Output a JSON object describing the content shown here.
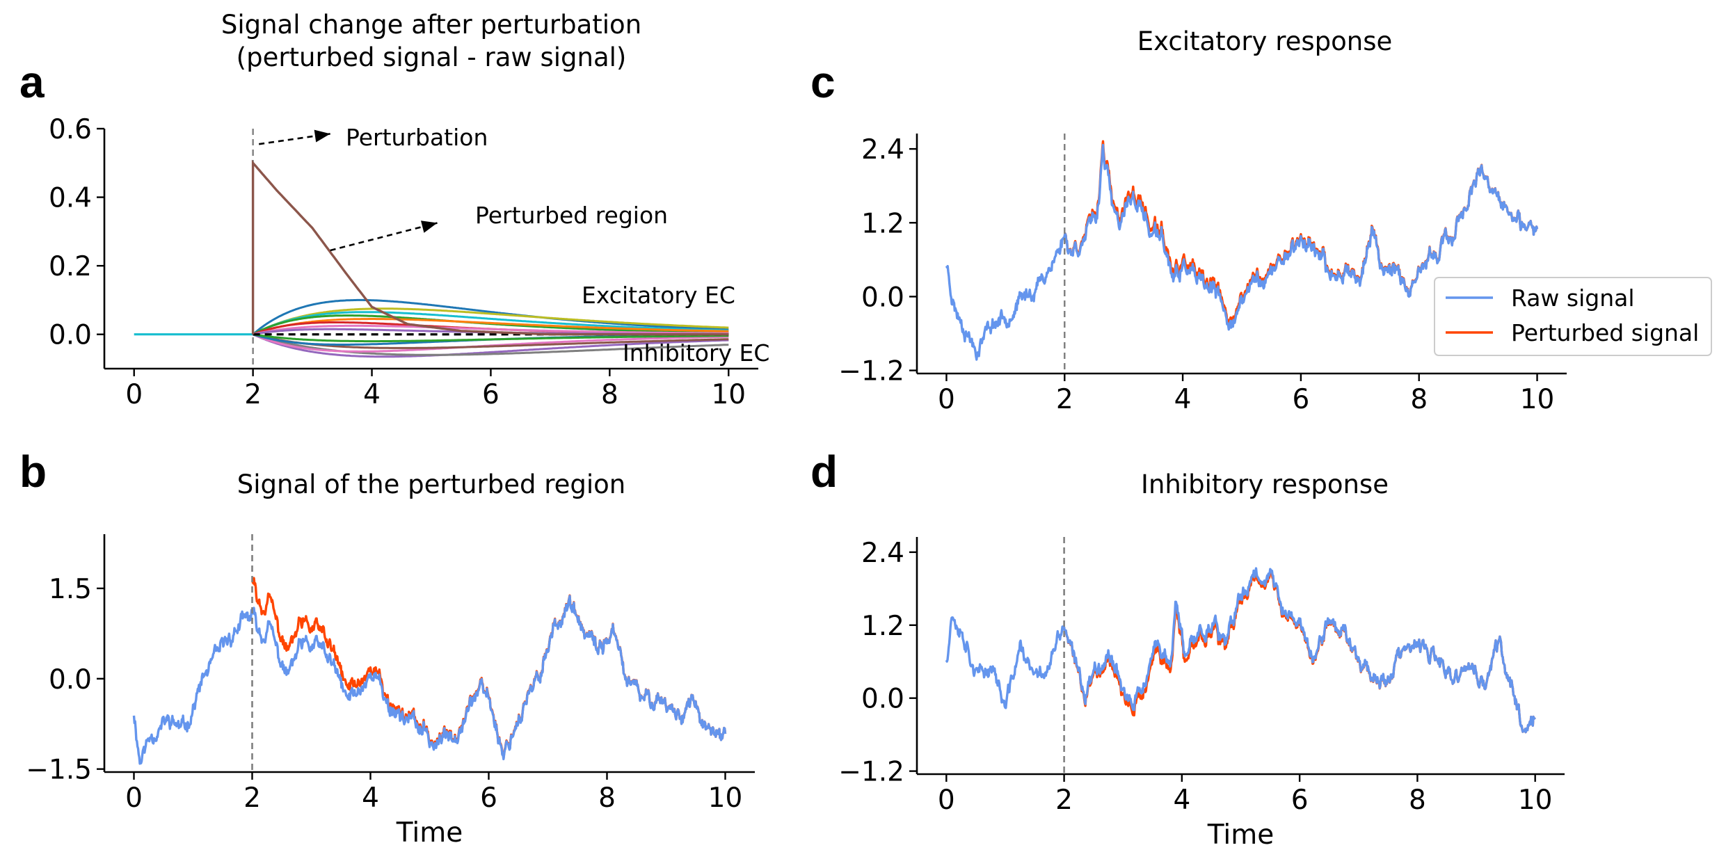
{
  "chart_data": [
    {
      "id": "a",
      "panel_letter": "a",
      "type": "line",
      "title_lines": [
        "Signal change after perturbation",
        "(perturbed signal - raw signal)"
      ],
      "xlabel": "",
      "xlim": [
        -0.5,
        10.5
      ],
      "ylim": [
        -0.1,
        0.6
      ],
      "xticks": [
        0,
        2,
        4,
        6,
        8,
        10
      ],
      "yticks": [
        0.0,
        0.2,
        0.4,
        0.6
      ],
      "ytick_labels": [
        "0.0",
        "0.2",
        "0.4",
        "0.6"
      ],
      "perturbation_time": 2,
      "perturbed_region": {
        "name": "Perturbed region",
        "color": "#8c564b",
        "peak": 0.5,
        "decay_points": [
          [
            2,
            0.5
          ],
          [
            2.4,
            0.42
          ],
          [
            3,
            0.31
          ],
          [
            3.6,
            0.17
          ],
          [
            4,
            0.08
          ],
          [
            4.6,
            0.03
          ],
          [
            5.5,
            0.01
          ],
          [
            7,
            0.0
          ],
          [
            10,
            0.0
          ]
        ]
      },
      "excitatory_curves": [
        {
          "color": "#1f77b4",
          "peak": 0.1,
          "peak_t": 3.8
        },
        {
          "color": "#bcbd22",
          "peak": 0.075,
          "peak_t": 4.2
        },
        {
          "color": "#17becf",
          "peak": 0.065,
          "peak_t": 3.9
        },
        {
          "color": "#2ca02c",
          "peak": 0.055,
          "peak_t": 3.6
        },
        {
          "color": "#ff7f0e",
          "peak": 0.045,
          "peak_t": 4.0
        },
        {
          "color": "#d62728",
          "peak": 0.035,
          "peak_t": 3.4
        },
        {
          "color": "#e377c2",
          "peak": 0.025,
          "peak_t": 3.7
        },
        {
          "color": "#9467bd",
          "peak": 0.015,
          "peak_t": 3.3
        }
      ],
      "inhibitory_curves": [
        {
          "color": "#9467bd",
          "peak": -0.065,
          "peak_t": 4.2
        },
        {
          "color": "#7f7f7f",
          "peak": -0.06,
          "peak_t": 5.0
        },
        {
          "color": "#e377c2",
          "peak": -0.05,
          "peak_t": 3.8
        },
        {
          "color": "#8c564b",
          "peak": -0.04,
          "peak_t": 4.5
        },
        {
          "color": "#1f77b4",
          "peak": -0.03,
          "peak_t": 3.5
        },
        {
          "color": "#2ca02c",
          "peak": -0.02,
          "peak_t": 4.0
        }
      ],
      "baseline_color": "#17becf",
      "annotations": {
        "perturbation": "Perturbation",
        "perturbed_region": "Perturbed region",
        "excitatory": "Excitatory EC",
        "inhibitory": "Inhibitory EC"
      }
    },
    {
      "id": "b",
      "panel_letter": "b",
      "type": "line",
      "title_lines": [
        "Signal of the perturbed region"
      ],
      "xlabel": "Time",
      "xlim": [
        -0.5,
        10.5
      ],
      "ylim": [
        -1.55,
        2.4
      ],
      "xticks": [
        0,
        2,
        4,
        6,
        8,
        10
      ],
      "yticks": [
        -1.5,
        0.0,
        1.5
      ],
      "ytick_labels": [
        "−1.5",
        "0.0",
        "1.5"
      ],
      "perturbation_time": 2,
      "raw_keypoints": [
        [
          0,
          -0.55
        ],
        [
          0.1,
          -1.35
        ],
        [
          0.3,
          -0.9
        ],
        [
          0.6,
          -0.7
        ],
        [
          0.85,
          -0.85
        ],
        [
          1.2,
          0.05
        ],
        [
          1.5,
          0.5
        ],
        [
          1.75,
          0.85
        ],
        [
          2.0,
          1.05
        ],
        [
          2.15,
          0.7
        ],
        [
          2.3,
          0.85
        ],
        [
          2.45,
          0.35
        ],
        [
          2.6,
          0.05
        ],
        [
          2.8,
          0.5
        ],
        [
          3.1,
          0.55
        ],
        [
          3.35,
          0.25
        ],
        [
          3.6,
          -0.35
        ],
        [
          3.8,
          -0.2
        ],
        [
          4.05,
          0.15
        ],
        [
          4.3,
          -0.45
        ],
        [
          4.7,
          -0.7
        ],
        [
          5.1,
          -1.1
        ],
        [
          5.45,
          -0.85
        ],
        [
          5.8,
          -0.2
        ],
        [
          6.0,
          -0.3
        ],
        [
          6.25,
          -1.25
        ],
        [
          6.5,
          -0.65
        ],
        [
          6.8,
          -0.1
        ],
        [
          7.1,
          0.85
        ],
        [
          7.35,
          1.25
        ],
        [
          7.6,
          0.75
        ],
        [
          7.85,
          0.45
        ],
        [
          8.1,
          0.8
        ],
        [
          8.3,
          0.05
        ],
        [
          8.6,
          -0.35
        ],
        [
          8.9,
          -0.3
        ],
        [
          9.2,
          -0.6
        ],
        [
          9.45,
          -0.35
        ],
        [
          9.7,
          -0.95
        ],
        [
          10.0,
          -0.95
        ]
      ],
      "perturbation_offset": {
        "peak": 0.5,
        "decay_points": [
          [
            2.0,
            0.5
          ],
          [
            2.5,
            0.42
          ],
          [
            3.0,
            0.31
          ],
          [
            3.5,
            0.2
          ],
          [
            4.0,
            0.1
          ],
          [
            4.5,
            0.05
          ],
          [
            5.0,
            0.03
          ],
          [
            6.0,
            0.015
          ],
          [
            7.0,
            0.01
          ],
          [
            10.0,
            0.0
          ]
        ]
      },
      "series": [
        {
          "name": "Raw signal",
          "color": "#6495ed"
        },
        {
          "name": "Perturbed signal",
          "color": "#ff4500"
        }
      ]
    },
    {
      "id": "c",
      "panel_letter": "c",
      "type": "line",
      "title_lines": [
        "Excitatory response"
      ],
      "xlabel": "",
      "xlim": [
        -0.5,
        10.5
      ],
      "ylim": [
        -1.25,
        2.65
      ],
      "xticks": [
        0,
        2,
        4,
        6,
        8,
        10
      ],
      "yticks": [
        -1.2,
        0.0,
        1.2,
        2.4
      ],
      "ytick_labels": [
        "−1.2",
        "0.0",
        "1.2",
        "2.4"
      ],
      "perturbation_time": 2,
      "raw_keypoints": [
        [
          0,
          0.55
        ],
        [
          0.15,
          -0.2
        ],
        [
          0.3,
          -0.45
        ],
        [
          0.5,
          -0.85
        ],
        [
          0.75,
          -0.45
        ],
        [
          1.0,
          -0.3
        ],
        [
          1.3,
          -0.05
        ],
        [
          1.6,
          0.25
        ],
        [
          1.9,
          0.75
        ],
        [
          2.0,
          1.0
        ],
        [
          2.1,
          0.75
        ],
        [
          2.3,
          0.9
        ],
        [
          2.55,
          1.3
        ],
        [
          2.65,
          2.45
        ],
        [
          2.8,
          1.5
        ],
        [
          2.95,
          1.05
        ],
        [
          3.1,
          1.65
        ],
        [
          3.3,
          1.45
        ],
        [
          3.45,
          1.05
        ],
        [
          3.65,
          0.95
        ],
        [
          3.85,
          0.25
        ],
        [
          4.05,
          0.5
        ],
        [
          4.3,
          0.15
        ],
        [
          4.55,
          0.1
        ],
        [
          4.75,
          -0.4
        ],
        [
          4.95,
          -0.25
        ],
        [
          5.2,
          0.3
        ],
        [
          5.45,
          0.3
        ],
        [
          5.7,
          0.65
        ],
        [
          5.95,
          0.9
        ],
        [
          6.2,
          0.85
        ],
        [
          6.5,
          0.3
        ],
        [
          6.8,
          0.5
        ],
        [
          7.0,
          0.25
        ],
        [
          7.2,
          1.05
        ],
        [
          7.4,
          0.45
        ],
        [
          7.65,
          0.5
        ],
        [
          7.85,
          -0.1
        ],
        [
          8.05,
          0.45
        ],
        [
          8.3,
          0.75
        ],
        [
          8.55,
          0.95
        ],
        [
          8.8,
          1.55
        ],
        [
          9.05,
          1.95
        ],
        [
          9.3,
          1.6
        ],
        [
          9.55,
          1.35
        ],
        [
          9.8,
          1.0
        ],
        [
          10.0,
          1.1
        ]
      ],
      "perturbation_offset": {
        "peak": 0.09,
        "decay_points": [
          [
            2.0,
            0.0
          ],
          [
            2.5,
            0.05
          ],
          [
            3.0,
            0.08
          ],
          [
            3.5,
            0.09
          ],
          [
            4.0,
            0.08
          ],
          [
            5.0,
            0.05
          ],
          [
            6.0,
            0.03
          ],
          [
            7.0,
            0.02
          ],
          [
            8.0,
            0.01
          ],
          [
            10.0,
            0.0
          ]
        ]
      },
      "series": [
        {
          "name": "Raw signal",
          "color": "#6495ed"
        },
        {
          "name": "Perturbed signal",
          "color": "#ff4500"
        }
      ],
      "legend": {
        "entries": [
          "Raw signal",
          "Perturbed signal"
        ],
        "location": "right"
      }
    },
    {
      "id": "d",
      "panel_letter": "d",
      "type": "line",
      "title_lines": [
        "Inhibitory response"
      ],
      "xlabel": "Time",
      "xlim": [
        -0.5,
        10.5
      ],
      "ylim": [
        -1.25,
        2.65
      ],
      "xticks": [
        0,
        2,
        4,
        6,
        8,
        10
      ],
      "yticks": [
        -1.2,
        0.0,
        1.2,
        2.4
      ],
      "ytick_labels": [
        "−1.2",
        "0.0",
        "1.2",
        "2.4"
      ],
      "perturbation_time": 2,
      "raw_keypoints": [
        [
          0,
          0.65
        ],
        [
          0.1,
          1.45
        ],
        [
          0.3,
          1.05
        ],
        [
          0.55,
          0.35
        ],
        [
          0.8,
          0.55
        ],
        [
          1.0,
          -0.2
        ],
        [
          1.25,
          0.85
        ],
        [
          1.5,
          0.3
        ],
        [
          1.75,
          0.55
        ],
        [
          2.0,
          1.2
        ],
        [
          2.15,
          0.65
        ],
        [
          2.35,
          0.1
        ],
        [
          2.55,
          0.55
        ],
        [
          2.8,
          0.75
        ],
        [
          3.0,
          0.2
        ],
        [
          3.15,
          -0.2
        ],
        [
          3.4,
          0.35
        ],
        [
          3.6,
          0.85
        ],
        [
          3.8,
          0.55
        ],
        [
          3.9,
          1.6
        ],
        [
          4.05,
          0.6
        ],
        [
          4.3,
          1.1
        ],
        [
          4.55,
          1.25
        ],
        [
          4.75,
          0.8
        ],
        [
          4.95,
          1.55
        ],
        [
          5.2,
          2.05
        ],
        [
          5.5,
          2.05
        ],
        [
          5.75,
          1.35
        ],
        [
          6.0,
          1.25
        ],
        [
          6.25,
          0.6
        ],
        [
          6.5,
          1.3
        ],
        [
          6.75,
          1.1
        ],
        [
          7.0,
          0.7
        ],
        [
          7.2,
          0.45
        ],
        [
          7.45,
          0.25
        ],
        [
          7.7,
          0.7
        ],
        [
          8.0,
          0.85
        ],
        [
          8.3,
          0.65
        ],
        [
          8.6,
          0.25
        ],
        [
          8.85,
          0.55
        ],
        [
          9.15,
          0.2
        ],
        [
          9.4,
          0.95
        ],
        [
          9.55,
          0.3
        ],
        [
          9.75,
          -0.25
        ],
        [
          9.85,
          -0.55
        ],
        [
          10.0,
          -0.2
        ]
      ],
      "perturbation_offset": {
        "peak": -0.1,
        "decay_points": [
          [
            2.0,
            0.0
          ],
          [
            2.5,
            -0.04
          ],
          [
            3.0,
            -0.08
          ],
          [
            3.5,
            -0.1
          ],
          [
            4.0,
            -0.09
          ],
          [
            5.0,
            -0.06
          ],
          [
            6.0,
            -0.03
          ],
          [
            7.0,
            -0.01
          ],
          [
            8.0,
            0.0
          ],
          [
            10.0,
            0.0
          ]
        ]
      },
      "series": [
        {
          "name": "Raw signal",
          "color": "#6495ed"
        },
        {
          "name": "Perturbed signal",
          "color": "#ff4500"
        }
      ]
    }
  ]
}
